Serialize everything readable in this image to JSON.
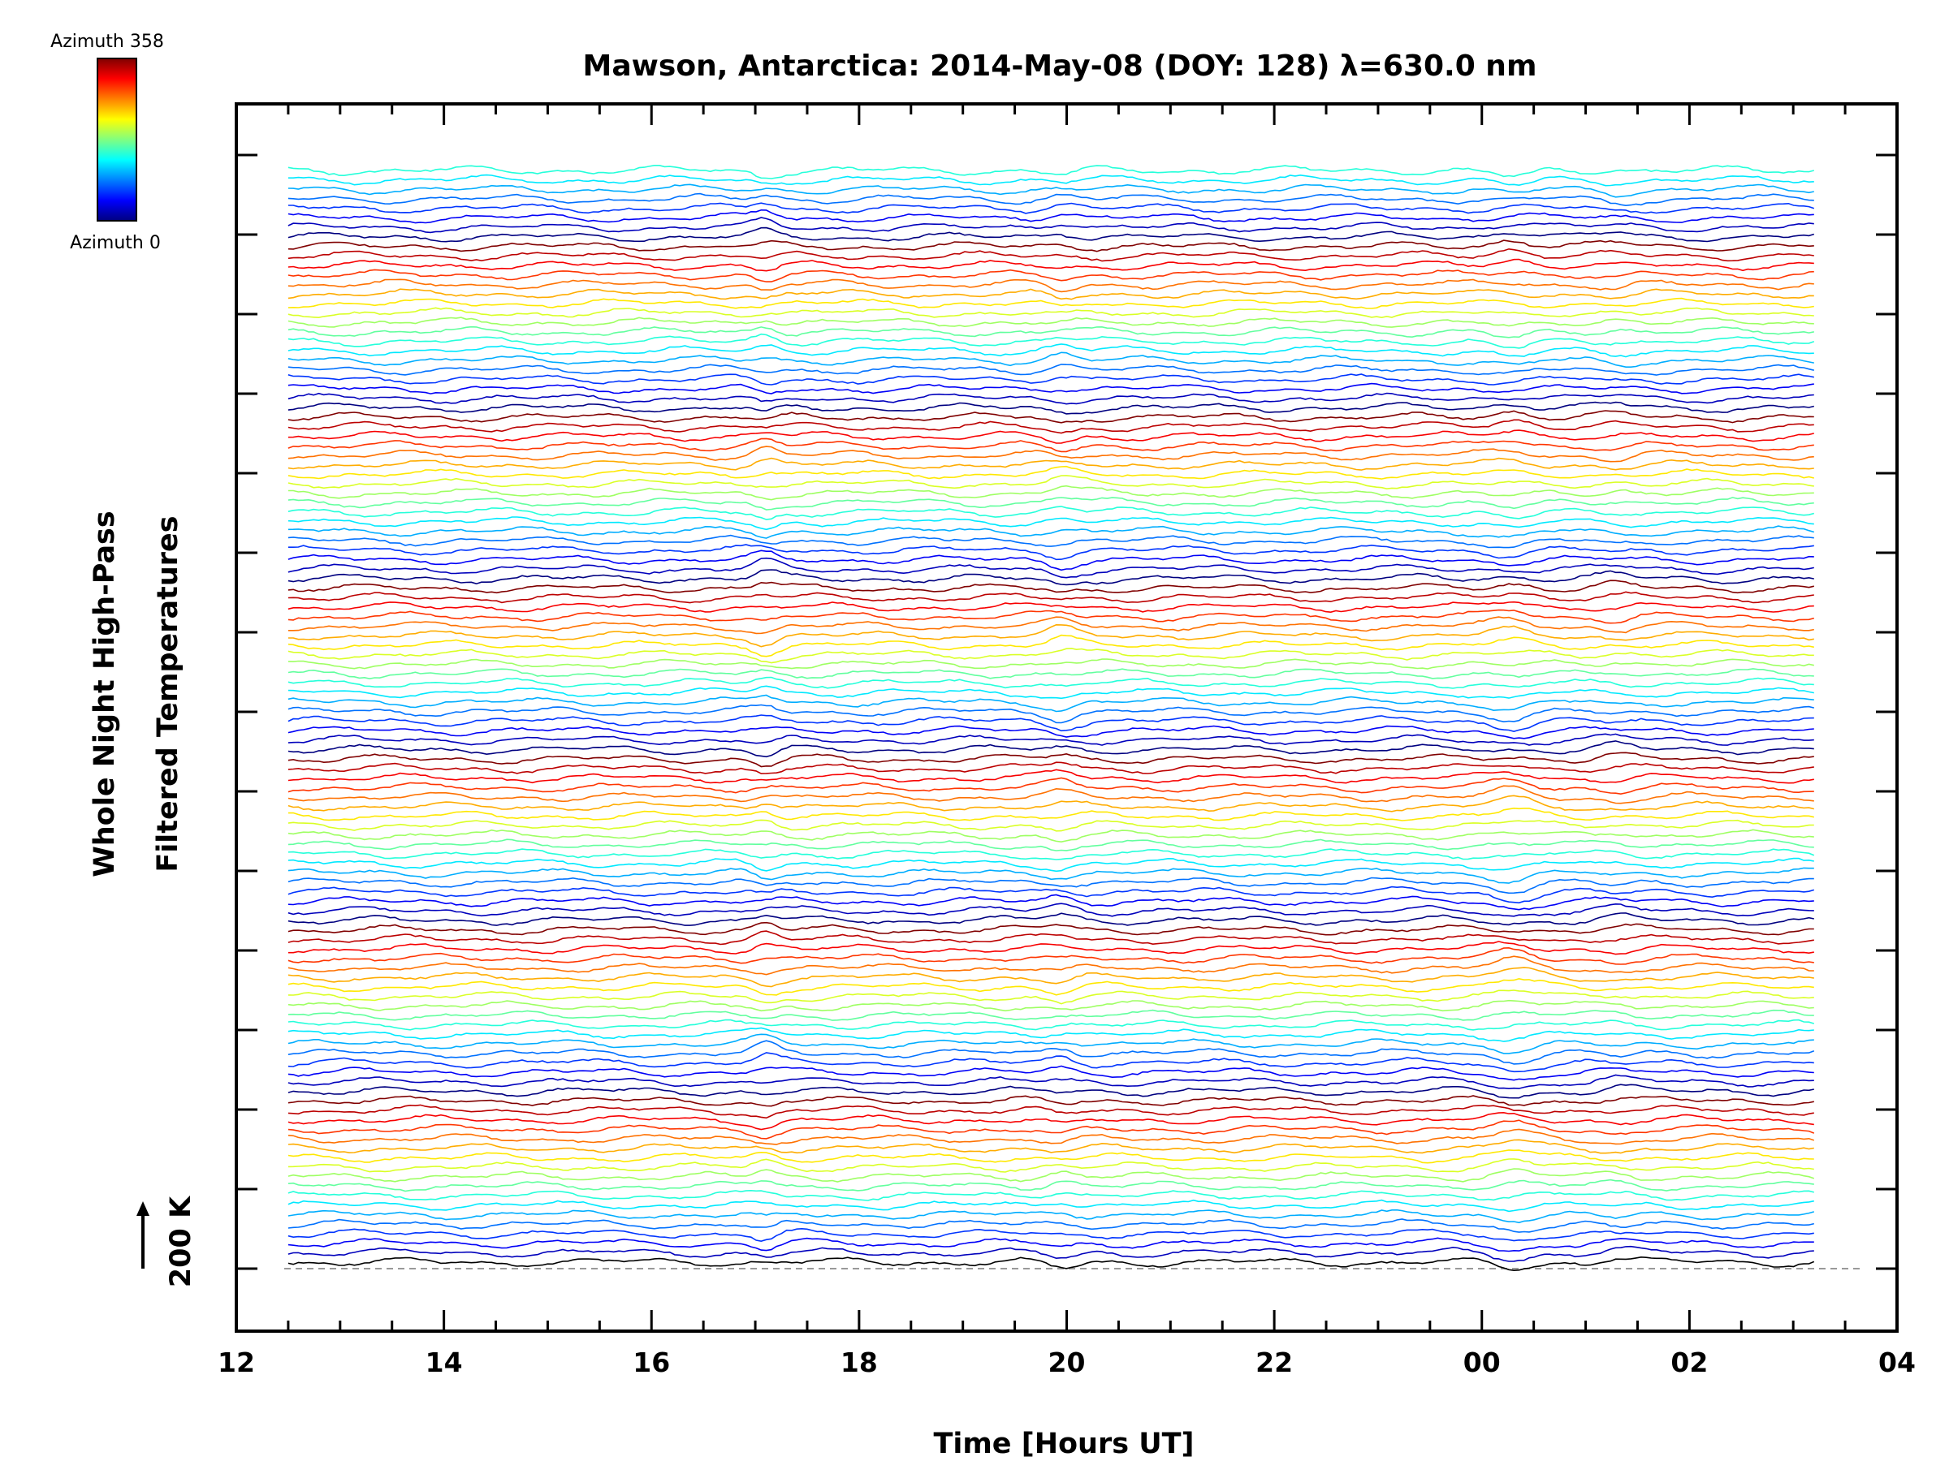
{
  "chart_data": {
    "type": "line",
    "title": "Mawson, Antarctica: 2014-May-08 (DOY: 128) λ=630.0 nm",
    "xlabel": "Time [Hours UT]",
    "ylabel_line1": "Whole Night High-Pass",
    "ylabel_line2": "Filtered Temperatures",
    "scale_label": "200 K",
    "xlim": [
      12,
      28
    ],
    "x_tick_labels": [
      "12",
      "14",
      "16",
      "18",
      "20",
      "22",
      "00",
      "02",
      "04"
    ],
    "x_data_range": [
      12.5,
      27.2
    ],
    "trace_count": 116,
    "trace_offset_K": 80,
    "colorbar": {
      "top_label": "Azimuth  358",
      "bottom_label": "Azimuth  0",
      "colors": [
        "#00007f",
        "#0000ff",
        "#0080ff",
        "#00ffff",
        "#80ff80",
        "#ffff00",
        "#ff8000",
        "#ff0000",
        "#7f0000"
      ]
    },
    "grid": false,
    "legend": "colorbar top-left"
  }
}
